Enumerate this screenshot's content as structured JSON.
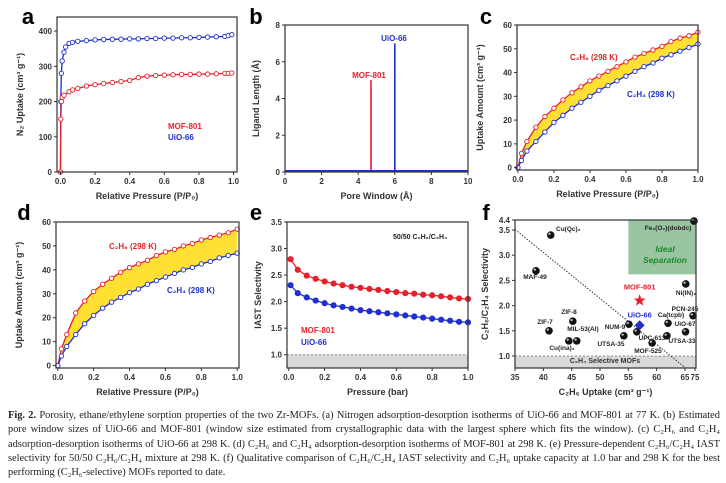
{
  "caption": {
    "label": "Fig. 2.",
    "text": " Porosity, ethane/ethylene sorption properties of the two Zr-MOFs. (a) Nitrogen adsorption-desorption isotherms of UiO-66 and MOF-801 at 77 K. (b) Estimated pore window sizes of UiO-66 and MOF-801 (window size estimated from crystallographic data with the largest sphere which fits the window). (c) C₂H₆ and C₂H₄ adsorption-desorption isotherms of UiO-66 at 298 K. (d) C₂H₆ and C₂H₄ adsorption-desorption isotherms of MOF-801 at 298 K. (e) Pressure-dependent C₂H₆/C₂H₄ IAST selectivity for 50/50 C₂H₆/C₂H₄ mixture at 298 K. (f) Qualitative comparison of C₂H₆/C₂H₄ IAST selectivity and C₂H₆ uptake capacity at 1.0 bar and 298 K for the best performing (C₂H₆-selective) MOFs reported to date."
  },
  "chart_data": [
    {
      "panel": "a",
      "type": "line",
      "xlabel": "Relative Pressure (P/P₀)",
      "ylabel": "N₂ Uptake (cm³ g⁻¹)",
      "xlim": [
        -0.02,
        1.02
      ],
      "ylim": [
        0,
        440
      ],
      "xticks": [
        "0.0",
        "0.2",
        "0.4",
        "0.6",
        "0.8",
        "1.0"
      ],
      "yticks": [
        "0",
        "100",
        "200",
        "300",
        "400"
      ],
      "annotations": [
        {
          "text": "MOF-801",
          "color": "#e8202a"
        },
        {
          "text": "UiO-66",
          "color": "#1f2fd0"
        }
      ],
      "series": [
        {
          "name": "UiO-66",
          "color": "#1f2fd0",
          "x": [
            0,
            0.002,
            0.005,
            0.01,
            0.02,
            0.03,
            0.05,
            0.07,
            0.1,
            0.15,
            0.2,
            0.25,
            0.3,
            0.35,
            0.4,
            0.45,
            0.5,
            0.55,
            0.6,
            0.65,
            0.7,
            0.75,
            0.8,
            0.85,
            0.9,
            0.95,
            0.97,
            0.99
          ],
          "y": [
            0,
            200,
            280,
            315,
            340,
            355,
            365,
            368,
            371,
            373,
            375,
            376,
            377,
            377,
            378,
            378,
            379,
            379,
            380,
            380,
            381,
            381,
            382,
            383,
            384,
            385,
            387,
            390
          ]
        },
        {
          "name": "MOF-801",
          "color": "#e8202a",
          "x": [
            0,
            0.002,
            0.005,
            0.01,
            0.02,
            0.05,
            0.07,
            0.1,
            0.15,
            0.2,
            0.25,
            0.3,
            0.35,
            0.4,
            0.45,
            0.5,
            0.55,
            0.6,
            0.65,
            0.7,
            0.75,
            0.8,
            0.85,
            0.9,
            0.95,
            0.97,
            0.99
          ],
          "y": [
            0,
            150,
            200,
            212,
            218,
            228,
            233,
            237,
            244,
            248,
            251,
            254,
            257,
            260,
            268,
            272,
            274,
            275,
            276,
            277,
            277,
            278,
            278,
            279,
            280,
            280,
            281
          ]
        }
      ]
    },
    {
      "panel": "b",
      "type": "bar",
      "xlabel": "Pore Window (Å)",
      "ylabel": "Ligand Length (Å)",
      "xlim": [
        0,
        10
      ],
      "ylim": [
        0,
        8
      ],
      "xticks": [
        "0",
        "2",
        "4",
        "6",
        "8",
        "10"
      ],
      "yticks": [
        "0",
        "2",
        "4",
        "6",
        "8"
      ],
      "series": [
        {
          "name": "MOF-801",
          "color": "#e8202a",
          "x": [
            4.7
          ],
          "y": [
            5
          ]
        },
        {
          "name": "UiO-66",
          "color": "#1f2fd0",
          "x": [
            6.0
          ],
          "y": [
            7
          ]
        }
      ]
    },
    {
      "panel": "c",
      "type": "line",
      "xlabel": "Relative Pressure (P/P₀)",
      "ylabel": "Uptake Amount (cm³ g⁻¹)",
      "xlim": [
        -0.005,
        1.0
      ],
      "ylim": [
        -1,
        60
      ],
      "xticks": [
        "0.0",
        "0.2",
        "0.4",
        "0.6",
        "0.8",
        "1.0"
      ],
      "yticks": [
        "0",
        "10",
        "20",
        "30",
        "40",
        "50",
        "60"
      ],
      "fill_between_color": "#ffe033",
      "series": [
        {
          "name": "C₂H₆ (298 K)",
          "color": "#e8202a",
          "x": [
            0,
            0.02,
            0.05,
            0.1,
            0.15,
            0.2,
            0.25,
            0.3,
            0.35,
            0.4,
            0.45,
            0.5,
            0.55,
            0.6,
            0.65,
            0.7,
            0.75,
            0.8,
            0.85,
            0.9,
            0.95,
            1.0
          ],
          "y": [
            0,
            6,
            11,
            17,
            21.5,
            25,
            28.5,
            31.5,
            34,
            36.5,
            38.5,
            40.5,
            42.5,
            44.5,
            46.5,
            48,
            49.5,
            51,
            53,
            54.5,
            55.5,
            57
          ]
        },
        {
          "name": "C₂H₄ (298 K)",
          "color": "#1f2fd0",
          "x": [
            0,
            0.02,
            0.05,
            0.1,
            0.15,
            0.2,
            0.25,
            0.3,
            0.35,
            0.4,
            0.45,
            0.5,
            0.55,
            0.6,
            0.65,
            0.7,
            0.75,
            0.8,
            0.85,
            0.9,
            0.95,
            1.0
          ],
          "y": [
            0,
            3,
            7,
            11,
            15,
            19,
            22,
            25,
            27.5,
            30,
            32.5,
            34.5,
            36.5,
            38.5,
            40.5,
            42.5,
            44,
            46,
            47.5,
            49,
            50.5,
            52
          ]
        }
      ]
    },
    {
      "panel": "d",
      "type": "line",
      "xlabel": "Relative Pressure (P/P₀)",
      "ylabel": "Uptake Amount (cm³ g⁻¹)",
      "xlim": [
        -0.01,
        1.01
      ],
      "ylim": [
        -1,
        60
      ],
      "xticks": [
        "0.0",
        "0.2",
        "0.4",
        "0.6",
        "0.8",
        "1.0"
      ],
      "yticks": [
        "0",
        "10",
        "20",
        "30",
        "40",
        "50",
        "60"
      ],
      "fill_between_color": "#ffe033",
      "series": [
        {
          "name": "C₂H₆ (298 K)",
          "color": "#e8202a",
          "x": [
            0,
            0.02,
            0.05,
            0.1,
            0.15,
            0.2,
            0.25,
            0.3,
            0.35,
            0.4,
            0.45,
            0.5,
            0.55,
            0.6,
            0.65,
            0.7,
            0.75,
            0.8,
            0.85,
            0.9,
            0.95,
            1.0
          ],
          "y": [
            0,
            7,
            13,
            22,
            27,
            31,
            34,
            36.5,
            39,
            41,
            42.5,
            44,
            46,
            47.5,
            48.5,
            50,
            51,
            52.5,
            53.5,
            54.5,
            55.5,
            57
          ]
        },
        {
          "name": "C₂H₄ (298 K)",
          "color": "#1f2fd0",
          "x": [
            0,
            0.02,
            0.05,
            0.1,
            0.15,
            0.2,
            0.25,
            0.3,
            0.35,
            0.4,
            0.45,
            0.5,
            0.55,
            0.6,
            0.65,
            0.7,
            0.75,
            0.8,
            0.85,
            0.9,
            0.95,
            1.0
          ],
          "y": [
            0,
            4,
            8,
            13,
            17.5,
            21,
            24,
            26.5,
            28.5,
            30.5,
            32,
            34,
            35.5,
            37,
            38.5,
            40,
            41,
            42.5,
            43.5,
            45,
            46,
            47
          ]
        }
      ]
    },
    {
      "panel": "e",
      "type": "line",
      "xlabel": "Pressure (bar)",
      "ylabel": "IAST Selectivity",
      "xlim": [
        -0.01,
        1.0
      ],
      "ylim": [
        0.75,
        3.5
      ],
      "xticks": [
        "0.0",
        "0.2",
        "0.4",
        "0.6",
        "0.8",
        "1.0"
      ],
      "yticks": [
        "1.0",
        "1.5",
        "2.0",
        "2.5",
        "3.0",
        "3.5"
      ],
      "reference_line": 1.0,
      "annotations": [
        {
          "text": "50/50 C₂H₆/C₂H₄",
          "color": "#222"
        },
        {
          "text": "MOF-801",
          "color": "#e8202a"
        },
        {
          "text": "UiO-66",
          "color": "#1f2fd0"
        }
      ],
      "series": [
        {
          "name": "MOF-801",
          "color": "#e8202a",
          "x": [
            0.01,
            0.05,
            0.1,
            0.15,
            0.2,
            0.25,
            0.3,
            0.35,
            0.4,
            0.45,
            0.5,
            0.55,
            0.6,
            0.65,
            0.7,
            0.75,
            0.8,
            0.85,
            0.9,
            0.95,
            1.0
          ],
          "y": [
            2.8,
            2.6,
            2.49,
            2.43,
            2.38,
            2.34,
            2.31,
            2.28,
            2.26,
            2.24,
            2.22,
            2.2,
            2.18,
            2.16,
            2.15,
            2.13,
            2.12,
            2.1,
            2.08,
            2.06,
            2.05
          ]
        },
        {
          "name": "UiO-66",
          "color": "#1f2fd0",
          "x": [
            0.01,
            0.05,
            0.1,
            0.15,
            0.2,
            0.25,
            0.3,
            0.35,
            0.4,
            0.45,
            0.5,
            0.55,
            0.6,
            0.65,
            0.7,
            0.75,
            0.8,
            0.85,
            0.9,
            0.95,
            1.0
          ],
          "y": [
            2.31,
            2.16,
            2.08,
            2.02,
            1.97,
            1.93,
            1.9,
            1.87,
            1.84,
            1.82,
            1.8,
            1.78,
            1.76,
            1.74,
            1.72,
            1.7,
            1.68,
            1.66,
            1.64,
            1.62,
            1.61
          ]
        }
      ]
    },
    {
      "panel": "f",
      "type": "scatter",
      "xlabel": "C₂H₆ Uptake (cm³ g⁻¹)",
      "ylabel": "C₂H₆/C₂H₄ Selectivity",
      "xlim": [
        35,
        75
      ],
      "ylim": [
        0.75,
        4.4
      ],
      "axis_breaks": {
        "x": 65,
        "y": 3.5
      },
      "xticks": [
        "35",
        "40",
        "45",
        "50",
        "55",
        "60",
        "65",
        "75"
      ],
      "yticks": [
        "1.0",
        "1.5",
        "2.0",
        "2.5",
        "3.0",
        "3.5",
        "4.4"
      ],
      "reference_line": 1.0,
      "region_label": "C₂H₄ Selective MOFs",
      "ideal_region": {
        "lines": [
          "Ideal",
          "Separation"
        ],
        "x": [
          55,
          75
        ],
        "y": [
          2.62,
          4.4
        ],
        "color": "#7fb88a"
      },
      "trend_line": {
        "x": [
          35,
          65.6
        ],
        "y": [
          3.55,
          0.75
        ]
      },
      "points": [
        {
          "label": "Cu(Qc)₂",
          "x": 41.3,
          "y": 3.4
        },
        {
          "label": "MAF-49",
          "x": 38.7,
          "y": 2.69
        },
        {
          "label": "ZIF-8",
          "x": 45.2,
          "y": 1.69
        },
        {
          "label": "ZIF-7",
          "x": 41.0,
          "y": 1.5
        },
        {
          "label": "MIL-53(Al)",
          "x": 45.9,
          "y": 1.3
        },
        {
          "label": "Cu(ina)₂",
          "x": 44.5,
          "y": 1.3
        },
        {
          "label": "NUM-9",
          "x": 55.1,
          "y": 1.63
        },
        {
          "label": "UTSA-35",
          "x": 54.2,
          "y": 1.4
        },
        {
          "label": "UPC-613",
          "x": 56.5,
          "y": 1.48
        },
        {
          "label": "MOF-525",
          "x": 59.2,
          "y": 1.26
        },
        {
          "label": "Ca(tcpb)",
          "x": 62.0,
          "y": 1.65
        },
        {
          "label": "UTSA-33",
          "x": 61.8,
          "y": 1.4
        },
        {
          "label": "UiO-67",
          "x": 65.6,
          "y": 1.48
        },
        {
          "label": "PCN-245",
          "x": 73,
          "y": 1.8
        },
        {
          "label": "Ni(IN)₂",
          "x": 65.8,
          "y": 2.43
        },
        {
          "label": "Fe₂(O₂)(dobdc)",
          "x": 74,
          "y": 4.3
        }
      ],
      "highlights": [
        {
          "label": "MOF-801",
          "x": 57.0,
          "y": 2.1,
          "color": "#e8202a",
          "marker": "star"
        },
        {
          "label": "UiO-66",
          "x": 57.0,
          "y": 1.61,
          "color": "#1f2fd0",
          "marker": "diamond"
        }
      ]
    }
  ]
}
